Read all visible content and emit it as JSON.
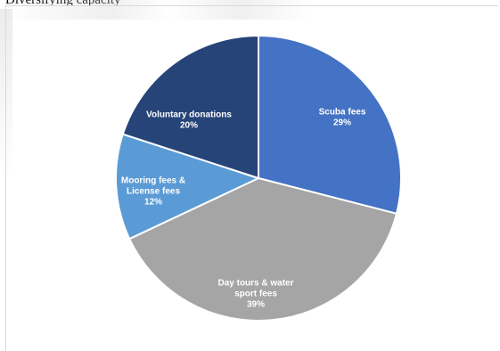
{
  "document": {
    "fragment_text": "Diversifying capacity"
  },
  "chart_data": {
    "type": "pie",
    "title": "",
    "unit": "%",
    "slices": [
      {
        "label_lines": [
          "Scuba fees"
        ],
        "value": 29,
        "value_text": "29%",
        "color": "#4472c4"
      },
      {
        "label_lines": [
          "Day tours & water",
          "sport fees"
        ],
        "value": 39,
        "value_text": "39%",
        "color": "#a5a5a5"
      },
      {
        "label_lines": [
          "Mooring fees &",
          "License fees"
        ],
        "value": 12,
        "value_text": "12%",
        "color": "#5b9bd5"
      },
      {
        "label_lines": [
          "Voluntary donations"
        ],
        "value": 20,
        "value_text": "20%",
        "color": "#264478"
      }
    ],
    "start_angle_deg": 0,
    "direction": "clockwise",
    "slice_border_color": "#ffffff",
    "label_color": "#ffffff",
    "legend": "none"
  }
}
